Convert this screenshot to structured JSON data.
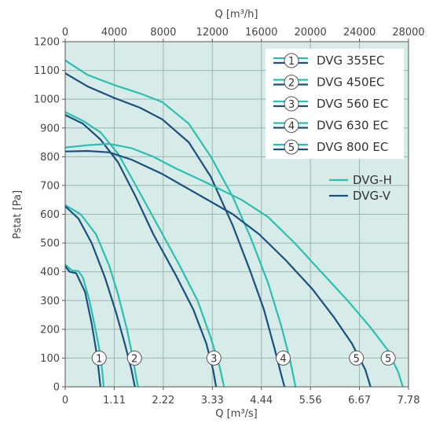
{
  "chart_data": {
    "type": "line",
    "xlabel": "Q [m³/s]",
    "x2label": "Q [m³/h]",
    "ylabel": "Pstat [Pa]",
    "xlim": [
      0,
      7.78
    ],
    "ylim": [
      0,
      1200
    ],
    "x_ticks": [
      "0",
      "1.11",
      "2.22",
      "3.33",
      "4.44",
      "5.56",
      "6.67",
      "7.78"
    ],
    "x2_ticks": [
      "0",
      "4000",
      "8000",
      "12000",
      "16000",
      "20000",
      "24000",
      "28000"
    ],
    "y_ticks": [
      "0",
      "100",
      "200",
      "300",
      "400",
      "500",
      "600",
      "700",
      "800",
      "900",
      "1000",
      "1100",
      "1200"
    ],
    "grid": true,
    "background_color": "#d7ece9",
    "legend_models": [
      {
        "num": "1",
        "label": "DVG 355EC"
      },
      {
        "num": "2",
        "label": "DVG 450EC"
      },
      {
        "num": "3",
        "label": "DVG 560 EC"
      },
      {
        "num": "4",
        "label": "DVG 630 EC"
      },
      {
        "num": "5",
        "label": "DVG 800 EC"
      }
    ],
    "legend_types": [
      {
        "label": "DVG-H",
        "color": "#2bbfae"
      },
      {
        "label": "DVG-V",
        "color": "#1b4f7e"
      }
    ],
    "series": [
      {
        "name": "DVG 355EC DVG-H",
        "num": "1",
        "type": "DVG-H",
        "color": "#2bbfae",
        "points": [
          [
            0,
            425
          ],
          [
            0.15,
            405
          ],
          [
            0.3,
            402
          ],
          [
            0.4,
            380
          ],
          [
            0.55,
            300
          ],
          [
            0.7,
            190
          ],
          [
            0.8,
            110
          ],
          [
            0.85,
            40
          ],
          [
            0.87,
            0
          ]
        ]
      },
      {
        "name": "DVG 355EC DVG-V",
        "num": "1",
        "type": "DVG-V",
        "color": "#1b4f7e",
        "points": [
          [
            0,
            420
          ],
          [
            0.1,
            400
          ],
          [
            0.25,
            395
          ],
          [
            0.45,
            330
          ],
          [
            0.6,
            220
          ],
          [
            0.72,
            110
          ],
          [
            0.77,
            40
          ],
          [
            0.8,
            0
          ]
        ]
      },
      {
        "name": "DVG 450EC DVG-H",
        "num": "2",
        "type": "DVG-H",
        "color": "#2bbfae",
        "points": [
          [
            0,
            632
          ],
          [
            0.35,
            600
          ],
          [
            0.7,
            530
          ],
          [
            1.0,
            420
          ],
          [
            1.2,
            320
          ],
          [
            1.4,
            200
          ],
          [
            1.52,
            110
          ],
          [
            1.6,
            40
          ],
          [
            1.65,
            0
          ]
        ]
      },
      {
        "name": "DVG 450EC DVG-V",
        "num": "2",
        "type": "DVG-V",
        "color": "#1b4f7e",
        "points": [
          [
            0,
            628
          ],
          [
            0.3,
            585
          ],
          [
            0.6,
            500
          ],
          [
            0.9,
            380
          ],
          [
            1.15,
            260
          ],
          [
            1.35,
            150
          ],
          [
            1.5,
            60
          ],
          [
            1.58,
            0
          ]
        ]
      },
      {
        "name": "DVG 560 EC DVG-H",
        "num": "3",
        "type": "DVG-H",
        "color": "#2bbfae",
        "points": [
          [
            0,
            955
          ],
          [
            0.4,
            925
          ],
          [
            0.8,
            885
          ],
          [
            1.2,
            810
          ],
          [
            1.6,
            700
          ],
          [
            2.1,
            560
          ],
          [
            2.6,
            420
          ],
          [
            3.0,
            300
          ],
          [
            3.3,
            170
          ],
          [
            3.5,
            70
          ],
          [
            3.6,
            0
          ]
        ]
      },
      {
        "name": "DVG 560 EC DVG-V",
        "num": "3",
        "type": "DVG-V",
        "color": "#1b4f7e",
        "points": [
          [
            0,
            945
          ],
          [
            0.4,
            915
          ],
          [
            0.8,
            860
          ],
          [
            1.2,
            780
          ],
          [
            1.6,
            660
          ],
          [
            2.0,
            530
          ],
          [
            2.5,
            390
          ],
          [
            2.9,
            270
          ],
          [
            3.2,
            150
          ],
          [
            3.35,
            60
          ],
          [
            3.42,
            0
          ]
        ]
      },
      {
        "name": "DVG 630 EC DVG-H",
        "num": "4",
        "type": "DVG-H",
        "color": "#2bbfae",
        "points": [
          [
            0,
            1135
          ],
          [
            0.5,
            1085
          ],
          [
            1.1,
            1050
          ],
          [
            1.7,
            1020
          ],
          [
            2.2,
            990
          ],
          [
            2.8,
            915
          ],
          [
            3.3,
            800
          ],
          [
            3.8,
            660
          ],
          [
            4.2,
            520
          ],
          [
            4.6,
            360
          ],
          [
            4.9,
            210
          ],
          [
            5.1,
            90
          ],
          [
            5.22,
            0
          ]
        ]
      },
      {
        "name": "DVG 630 EC DVG-V",
        "num": "4",
        "type": "DVG-V",
        "color": "#1b4f7e",
        "points": [
          [
            0,
            1090
          ],
          [
            0.5,
            1045
          ],
          [
            1.1,
            1005
          ],
          [
            1.7,
            970
          ],
          [
            2.2,
            930
          ],
          [
            2.8,
            850
          ],
          [
            3.3,
            730
          ],
          [
            3.8,
            560
          ],
          [
            4.2,
            400
          ],
          [
            4.5,
            270
          ],
          [
            4.75,
            130
          ],
          [
            4.9,
            40
          ],
          [
            4.97,
            0
          ]
        ]
      },
      {
        "name": "DVG 800 EC DVG-H",
        "num": "5",
        "type": "DVG-H",
        "color": "#2bbfae",
        "points": [
          [
            0,
            832
          ],
          [
            0.5,
            840
          ],
          [
            1.0,
            845
          ],
          [
            1.5,
            830
          ],
          [
            2.0,
            800
          ],
          [
            2.5,
            760
          ],
          [
            3.2,
            710
          ],
          [
            4.0,
            650
          ],
          [
            4.6,
            590
          ],
          [
            5.2,
            500
          ],
          [
            5.8,
            400
          ],
          [
            6.4,
            300
          ],
          [
            6.9,
            210
          ],
          [
            7.3,
            130
          ],
          [
            7.55,
            50
          ],
          [
            7.65,
            0
          ]
        ]
      },
      {
        "name": "DVG 800 EC DVG-V",
        "num": "5",
        "type": "DVG-V",
        "color": "#1b4f7e",
        "points": [
          [
            0,
            818
          ],
          [
            0.5,
            820
          ],
          [
            1.0,
            815
          ],
          [
            1.5,
            790
          ],
          [
            2.2,
            740
          ],
          [
            3.0,
            670
          ],
          [
            3.8,
            600
          ],
          [
            4.4,
            530
          ],
          [
            5.0,
            440
          ],
          [
            5.6,
            340
          ],
          [
            6.1,
            240
          ],
          [
            6.5,
            150
          ],
          [
            6.8,
            60
          ],
          [
            6.92,
            0
          ]
        ]
      }
    ],
    "curve_markers": [
      {
        "num": "1",
        "x": 0.77,
        "y": 100
      },
      {
        "num": "2",
        "x": 1.57,
        "y": 100
      },
      {
        "num": "3",
        "x": 3.37,
        "y": 100
      },
      {
        "num": "4",
        "x": 4.94,
        "y": 100
      },
      {
        "num": "5",
        "x": 6.6,
        "y": 100
      },
      {
        "num": "5",
        "x": 7.32,
        "y": 100
      }
    ]
  }
}
